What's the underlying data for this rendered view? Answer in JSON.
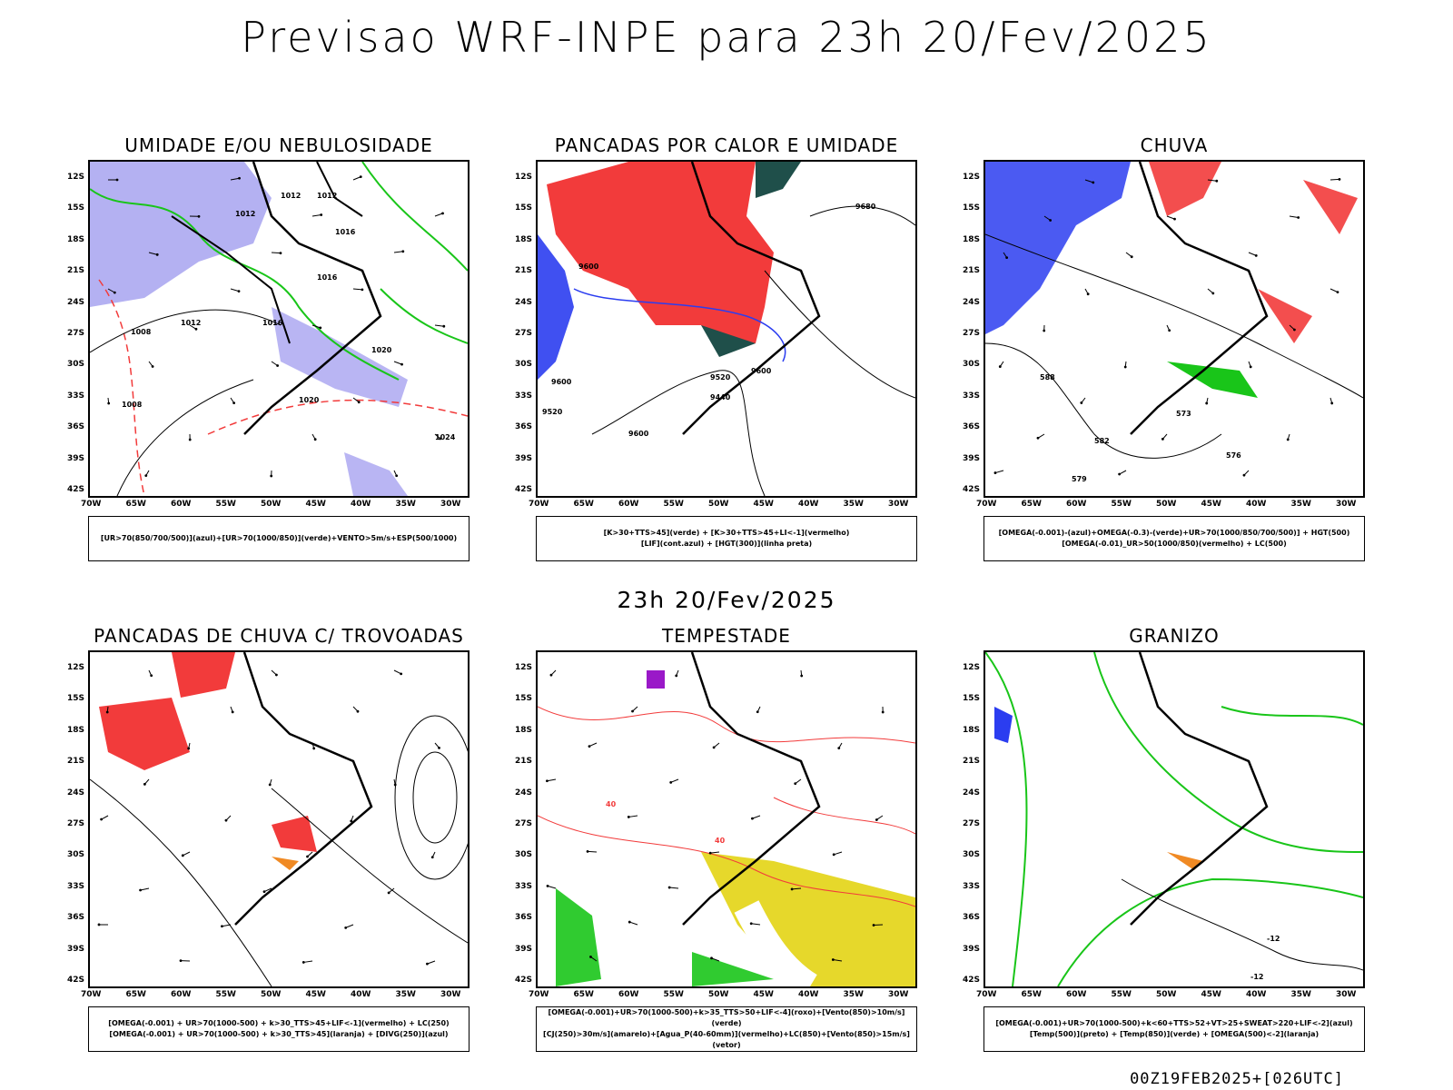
{
  "page": {
    "title": "Previsao WRF-INPE  para 23h 20/Fev/2025",
    "subtitle": "23h 20/Fev/2025",
    "footer": "00Z19FEB2025+[026UTC]"
  },
  "axes": {
    "lat_labels": [
      "12S",
      "15S",
      "18S",
      "21S",
      "24S",
      "27S",
      "30S",
      "33S",
      "36S",
      "39S",
      "42S"
    ],
    "lon_labels": [
      "70W",
      "65W",
      "60W",
      "55W",
      "50W",
      "45W",
      "40W",
      "35W",
      "30W"
    ]
  },
  "panels": [
    {
      "title": "UMIDADE E/OU NEBULOSIDADE",
      "legend": [
        "[UR>70(850/700/500)](azul)+[UR>70(1000/850)](verde)+VENTO>5m/s+ESP(500/1000)"
      ],
      "labels": [
        "1012",
        "1012",
        "1012",
        "1016",
        "1016",
        "1012",
        "1016",
        "1020",
        "1020",
        "1008",
        "1008",
        "1024"
      ]
    },
    {
      "title": "PANCADAS POR CALOR E UMIDADE",
      "legend": [
        "[K>30+TTS>45](verde) + [K>30+TTS>45+LI<-1](vermelho)",
        "[LIF](cont.azul) + [HGT(300)](linha preta)"
      ],
      "labels": [
        "9680",
        "9600",
        "9600",
        "9520",
        "9600",
        "9520",
        "9440",
        "9600"
      ]
    },
    {
      "title": "CHUVA",
      "legend": [
        "[OMEGA(-0.001)-(azul)+OMEGA(-0.3)-(verde)+UR>70(1000/850/700/500)] + HGT(500)",
        "[OMEGA(-0.01)_UR>50(1000/850)(vermelho) + LC(500)"
      ],
      "labels": [
        "588",
        "573",
        "576",
        "582",
        "579"
      ]
    },
    {
      "title": "PANCADAS DE CHUVA C/ TROVOADAS",
      "legend": [
        "[OMEGA(-0.001) + UR>70(1000-500) + k>30_TTS>45+LIF<-1](vermelho) + LC(250)",
        "[OMEGA(-0.001) + UR>70(1000-500) + k>30_TTS>45](laranja) + [DIVG(250)](azul)"
      ],
      "labels": []
    },
    {
      "title": "TEMPESTADE",
      "legend": [
        "[OMEGA(-0.001)+UR>70(1000-500)+k>35_TTS>50+LIF<-4](roxo)+[Vento(850)>10m/s](verde)",
        "[CJ(250)>30m/s](amarelo)+[Agua_P(40-60mm)](vermelho)+LC(850)+[Vento(850)>15m/s](vetor)"
      ],
      "labels": [
        "40",
        "40"
      ]
    },
    {
      "title": "GRANIZO",
      "legend": [
        "[OMEGA(-0.001)+UR>70(1000-500)+k<60+TTS>52+VT>25+SWEAT>220+LIF<-2](azul)",
        "[Temp(500)](preto) + [Temp(850)](verde) + [OMEGA(500)<-2](laranja)"
      ],
      "labels": [
        "-12",
        "-12"
      ]
    }
  ],
  "colors": {
    "red": "#f23b3b",
    "blue": "#2b3df0",
    "green": "#19c519",
    "lavender": "#a7a3f0",
    "yellow": "#e6d82b",
    "darkgreen": "#1f4f4a",
    "orange": "#f08a24",
    "purple": "#9a19c8"
  }
}
